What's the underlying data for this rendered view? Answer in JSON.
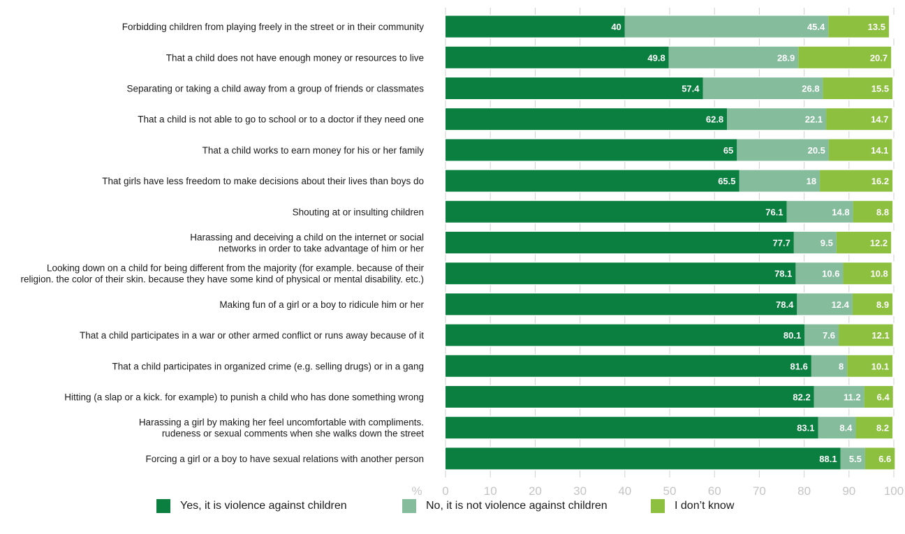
{
  "chart_data": {
    "type": "bar",
    "orientation": "horizontal",
    "stacked": true,
    "xlabel": "%",
    "xlim": [
      0,
      100
    ],
    "xticks": [
      "0",
      "10",
      "20",
      "30",
      "40",
      "50",
      "60",
      "70",
      "80",
      "90",
      "100"
    ],
    "grid": true,
    "legend_position": "bottom",
    "categories": [
      [
        "Forbidding children from playing freely in the street or in their community"
      ],
      [
        "That a child does not have enough money or resources to live"
      ],
      [
        "Separating or taking a child away from a group of friends or classmates"
      ],
      [
        "That a child is not able to go to school or to a doctor if they need one"
      ],
      [
        "That a child works to earn money for his or her family"
      ],
      [
        "That girls have less freedom to make decisions about their lives than boys do"
      ],
      [
        "Shouting at or insulting children"
      ],
      [
        "Harassing and deceiving a child on the internet or social",
        "networks in order to take advantage of him or her"
      ],
      [
        "Looking down on a child for being different from the majority (for example. because of their",
        "religion. the color of their skin. because they have some kind of physical or mental disability. etc.)"
      ],
      [
        "Making fun of a girl or a boy to ridicule him or her"
      ],
      [
        "That a child participates in a war or other armed conflict or runs away because of it"
      ],
      [
        "That a child participates in organized crime (e.g. selling drugs) or in a gang"
      ],
      [
        "Hitting (a slap or a kick. for example) to punish a child who has done something wrong"
      ],
      [
        "Harassing a girl by making her feel uncomfortable with compliments.",
        "rudeness or sexual comments when she walks down the street"
      ],
      [
        "Forcing a girl or a boy to have sexual relations with another person"
      ]
    ],
    "series": [
      {
        "name": "Yes, it is violence against children",
        "color": "#0a7f3f",
        "values": [
          40,
          49.8,
          57.4,
          62.8,
          65,
          65.5,
          76.1,
          77.7,
          78.1,
          78.4,
          80.1,
          81.6,
          82.2,
          83.1,
          88.1
        ]
      },
      {
        "name": "No, it is not violence against children",
        "color": "#84bc9c",
        "values": [
          45.4,
          28.9,
          26.8,
          22.1,
          20.5,
          18,
          14.8,
          9.5,
          10.6,
          12.4,
          7.6,
          8,
          11.2,
          8.4,
          5.5
        ]
      },
      {
        "name": "I don’t know",
        "color": "#8ec03f",
        "values": [
          13.5,
          20.7,
          15.5,
          14.7,
          14.1,
          16.2,
          8.8,
          12.2,
          10.8,
          8.9,
          12.1,
          10.1,
          6.4,
          8.2,
          6.6
        ]
      }
    ]
  }
}
